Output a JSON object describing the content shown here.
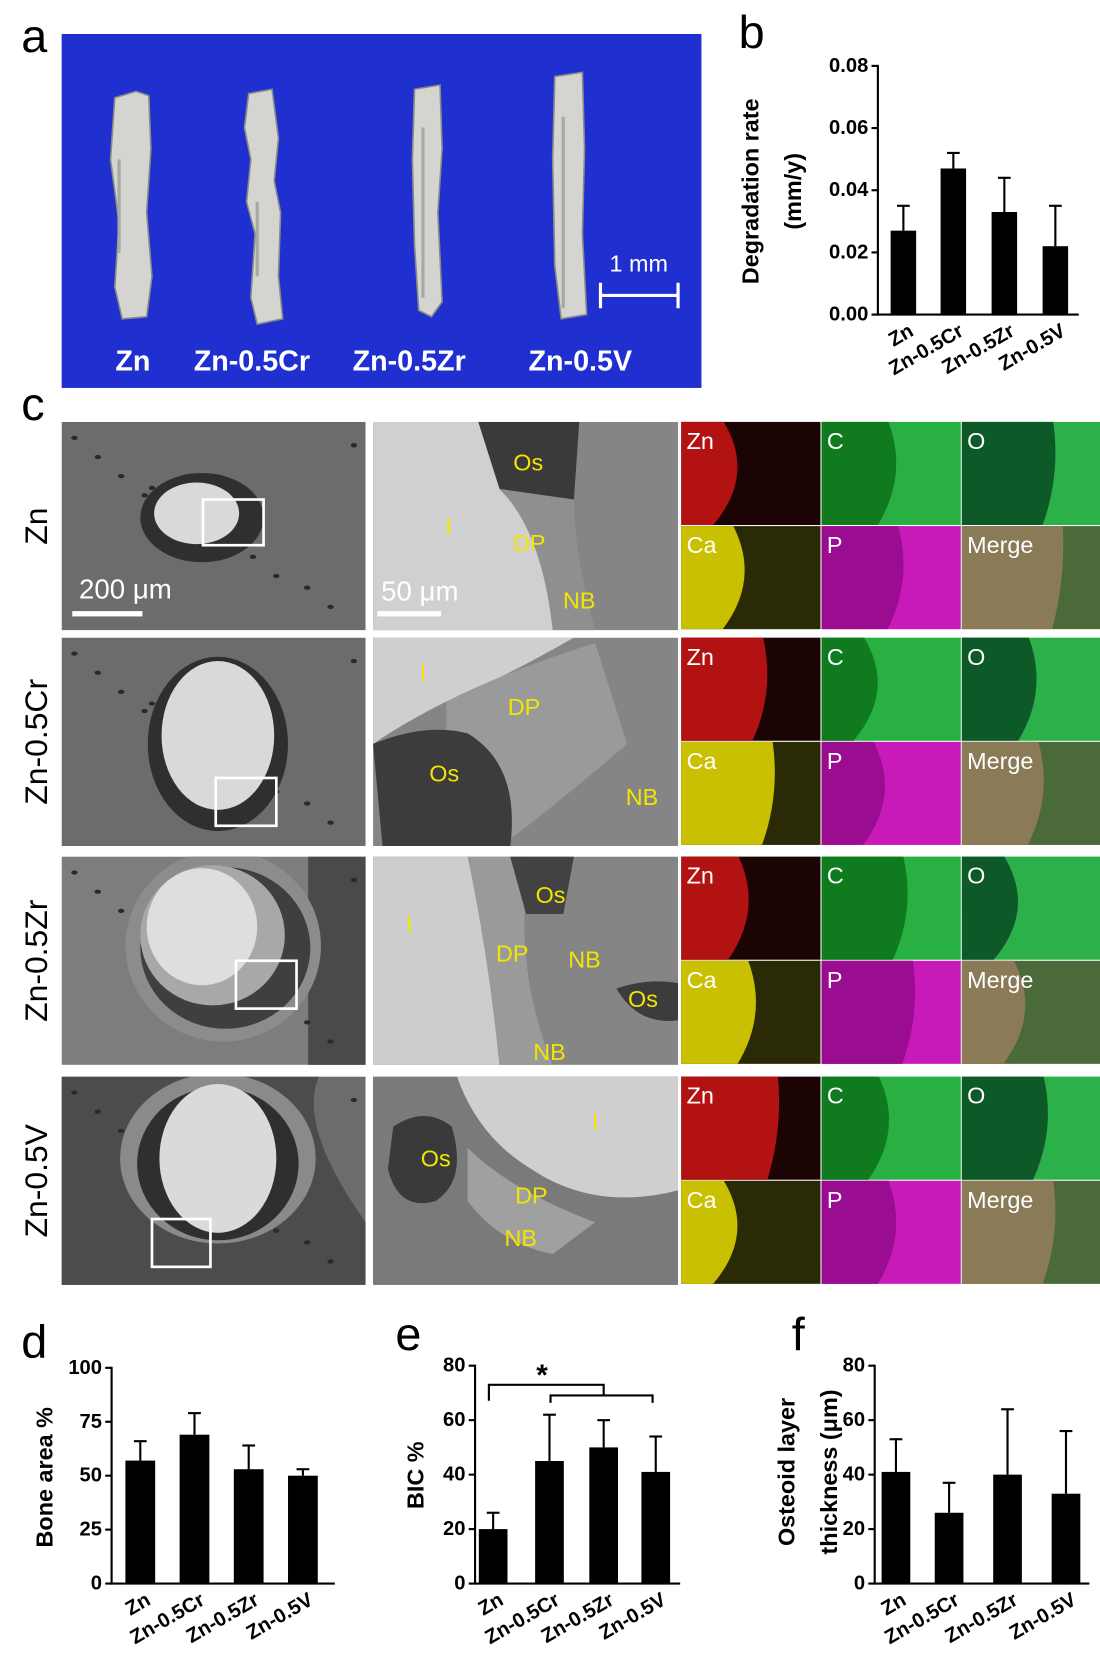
{
  "panel_a": {
    "letter": "a",
    "labels": [
      "Zn",
      "Zn-0.5Cr",
      "Zn-0.5Zr",
      "Zn-0.5V"
    ],
    "scale_bar": "1 mm"
  },
  "panel_c": {
    "letter": "c",
    "rows": [
      {
        "label": "Zn",
        "overview_scale": "200 μm",
        "detail_scale": "50 μm",
        "detail_labels": [
          "Os",
          "I",
          "DP",
          "NB"
        ],
        "eds": [
          "Zn",
          "C",
          "O",
          "Ca",
          "P",
          "Merge"
        ]
      },
      {
        "label": "Zn-0.5Cr",
        "detail_labels": [
          "I",
          "DP",
          "Os",
          "NB"
        ],
        "eds": [
          "Zn",
          "C",
          "O",
          "Ca",
          "P",
          "Merge"
        ]
      },
      {
        "label": "Zn-0.5Zr",
        "detail_labels": [
          "Os",
          "I",
          "DP",
          "NB",
          "Os",
          "NB"
        ],
        "eds": [
          "Zn",
          "C",
          "O",
          "Ca",
          "P",
          "Merge"
        ]
      },
      {
        "label": "Zn-0.5V",
        "detail_labels": [
          "I",
          "Os",
          "DP",
          "NB"
        ],
        "eds": [
          "Zn",
          "C",
          "O",
          "Ca",
          "P",
          "Merge"
        ]
      }
    ]
  },
  "chart_data": [
    {
      "type": "bar",
      "panel": "b",
      "ylabel": [
        "Degradation rate",
        "(mm/y)"
      ],
      "categories": [
        "Zn",
        "Zn-0.5Cr",
        "Zn-0.5Zr",
        "Zn-0.5V"
      ],
      "values": [
        0.027,
        0.047,
        0.033,
        0.022
      ],
      "errors": [
        0.008,
        0.005,
        0.011,
        0.013
      ],
      "color": "#000000",
      "ylim": [
        0,
        0.08
      ],
      "yticks": [
        {
          "value": 0,
          "label": "0.00"
        },
        {
          "value": 0.02,
          "label": "0.02"
        },
        {
          "value": 0.04,
          "label": "0.04"
        },
        {
          "value": 0.06,
          "label": "0.06"
        },
        {
          "value": 0.08,
          "label": "0.08"
        }
      ]
    },
    {
      "type": "bar",
      "panel": "d",
      "ylabel": [
        "Bone area %"
      ],
      "categories": [
        "Zn",
        "Zn-0.5Cr",
        "Zn-0.5Zr",
        "Zn-0.5V"
      ],
      "values": [
        57,
        69,
        53,
        50
      ],
      "errors": [
        9,
        10,
        11,
        3
      ],
      "color": "#000000",
      "ylim": [
        0,
        100
      ],
      "yticks": [
        0,
        25,
        50,
        75,
        100
      ]
    },
    {
      "type": "bar",
      "panel": "e",
      "ylabel": [
        "BIC %"
      ],
      "annotation": "*",
      "categories": [
        "Zn",
        "Zn-0.5Cr",
        "Zn-0.5Zr",
        "Zn-0.5V"
      ],
      "values": [
        20,
        45,
        50,
        41
      ],
      "errors": [
        6,
        17,
        10,
        13
      ],
      "color": "#000000",
      "ylim": [
        0,
        80
      ],
      "yticks": [
        0,
        20,
        40,
        60,
        80
      ]
    },
    {
      "type": "bar",
      "panel": "f",
      "ylabel": [
        "Osteoid layer",
        "thickness (μm)"
      ],
      "categories": [
        "Zn",
        "Zn-0.5Cr",
        "Zn-0.5Zr",
        "Zn-0.5V"
      ],
      "values": [
        41,
        26,
        40,
        33
      ],
      "errors": [
        12,
        11,
        24,
        23
      ],
      "color": "#000000",
      "ylim": [
        0,
        80
      ],
      "yticks": [
        0,
        20,
        40,
        60,
        80
      ]
    }
  ]
}
